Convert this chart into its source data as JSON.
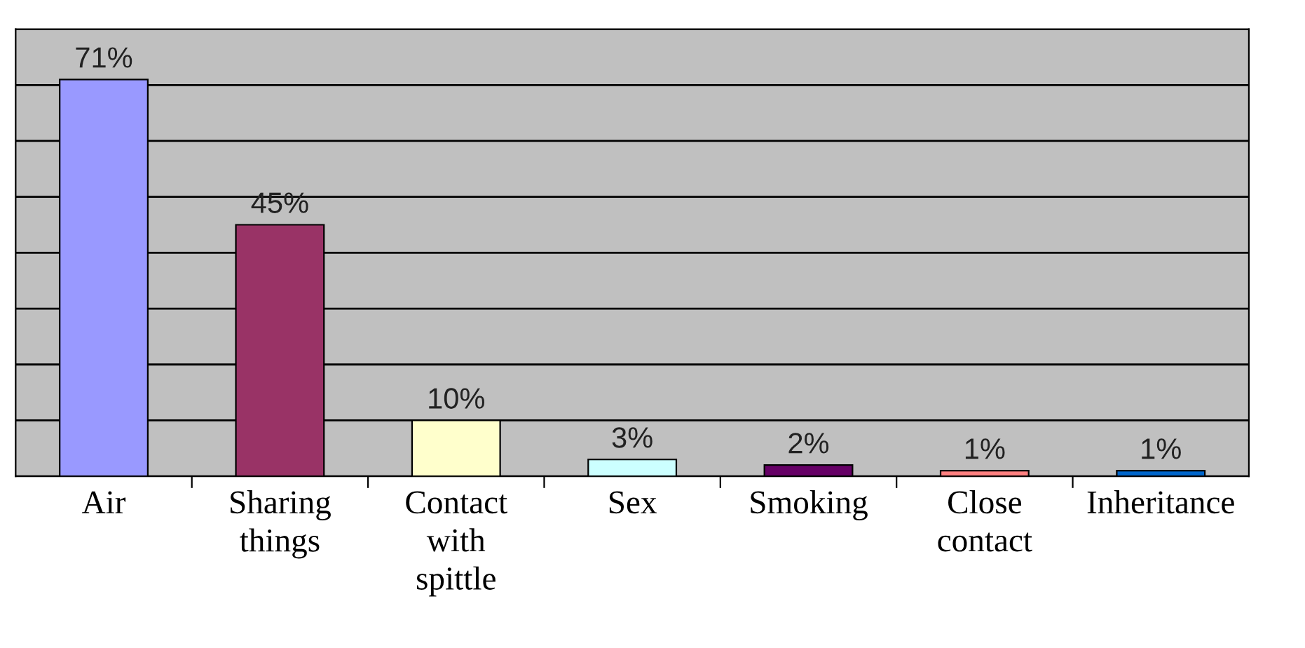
{
  "chart_data": {
    "type": "bar",
    "categories": [
      "Air",
      "Sharing things",
      "Contact with spittle",
      "Sex",
      "Smoking",
      "Close contact",
      "Inheritance"
    ],
    "values": [
      71,
      45,
      10,
      3,
      2,
      1,
      1
    ],
    "colors": [
      "#9999ff",
      "#993366",
      "#ffffcc",
      "#ccffff",
      "#660066",
      "#ff8080",
      "#0066cc"
    ],
    "value_labels": [
      "71%",
      "45%",
      "10%",
      "3%",
      "2%",
      "1%",
      "1%"
    ],
    "ylim": [
      0,
      80
    ],
    "yticks": [
      {
        "value": 0,
        "label": null
      },
      {
        "value": 10,
        "label": null
      },
      {
        "value": 20,
        "label": null
      },
      {
        "value": 30,
        "label": null
      },
      {
        "value": 40,
        "label": null
      },
      {
        "value": 50,
        "label": null
      },
      {
        "value": 60,
        "label": null
      },
      {
        "value": 70,
        "label": null
      },
      {
        "value": 80,
        "label": null
      }
    ],
    "grid": "y"
  }
}
